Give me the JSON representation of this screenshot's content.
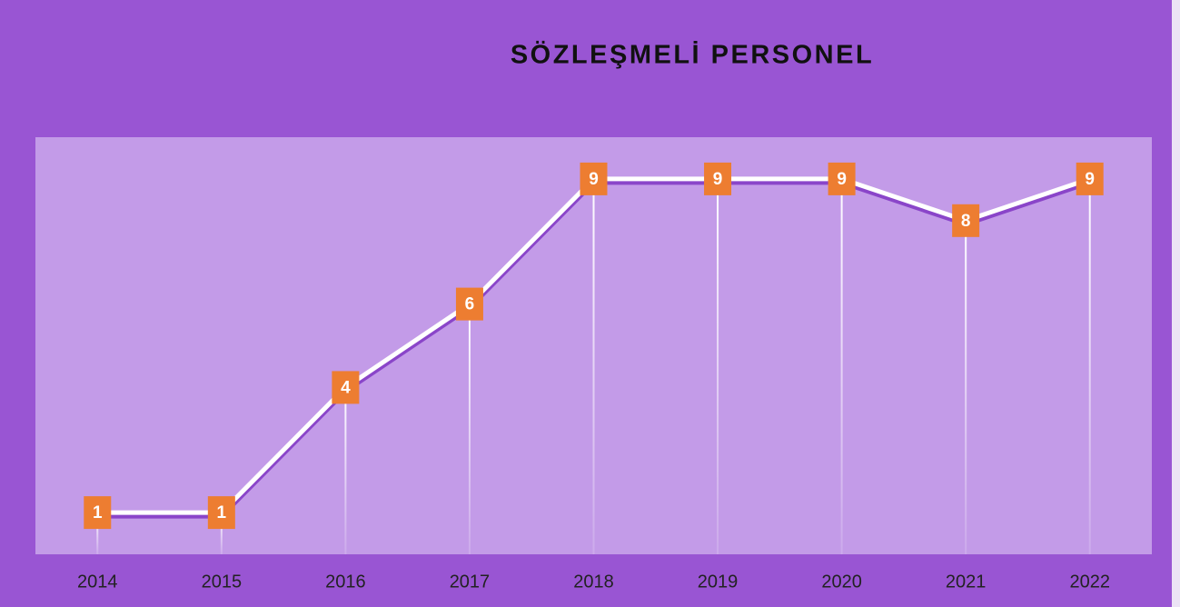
{
  "chart_data": {
    "type": "line",
    "title": "SÖZLEŞMELİ PERSONEL",
    "categories": [
      "2014",
      "2015",
      "2016",
      "2017",
      "2018",
      "2019",
      "2020",
      "2021",
      "2022"
    ],
    "values": [
      1,
      1,
      4,
      6,
      9,
      9,
      9,
      8,
      9
    ],
    "color": "#ffffff",
    "label_color": "#ed7d31",
    "ylim": [
      0,
      10
    ],
    "grid": false
  }
}
